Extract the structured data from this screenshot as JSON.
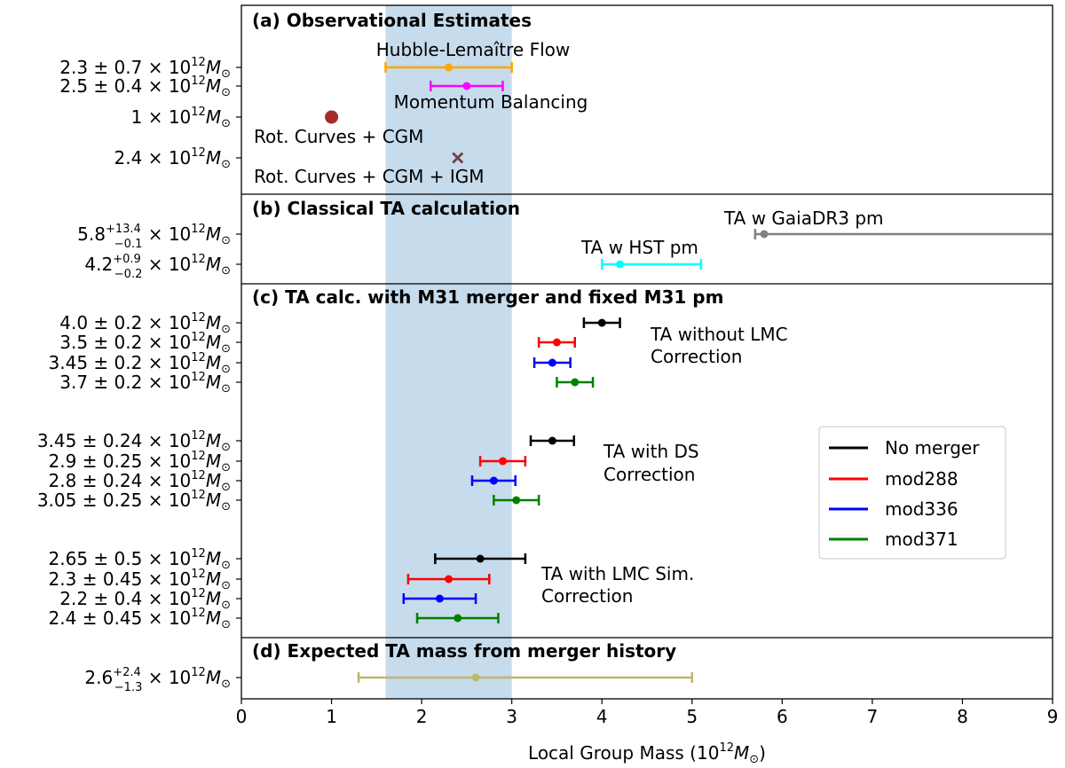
{
  "chart_data": {
    "type": "errorbar",
    "xlabel": "Local Group Mass (10",
    "xlabel_exp": "12",
    "xlabel_tail": "M",
    "xlabel_sub": "⊙",
    "xlabel_close": ")",
    "xlim": [
      0,
      9
    ],
    "xticks": [
      "0",
      "1",
      "2",
      "3",
      "4",
      "5",
      "6",
      "7",
      "8",
      "9"
    ],
    "shaded_band": {
      "x_range": [
        1.6,
        3.0
      ],
      "color": "#c6dbec"
    },
    "unit": {
      "times": "× 10",
      "exp": "12",
      "M": "M",
      "sun": "⊙"
    },
    "panels": [
      {
        "title": "(a) Observational Estimates",
        "rows": [
          {
            "label_value": "2.3 ± 0.7",
            "x": 2.3,
            "lo": 1.6,
            "hi": 3.0,
            "color": "#ffa500",
            "marker": "dot"
          },
          {
            "label_value": "2.5 ± 0.4",
            "x": 2.5,
            "lo": 2.1,
            "hi": 2.9,
            "color": "#ff00ff",
            "marker": "dot"
          },
          {
            "label_value": "1",
            "x": 1.0,
            "color": "#a52a2a",
            "marker": "big-dot"
          },
          {
            "label_value": "2.4",
            "x": 2.4,
            "color": "#7a3d45",
            "marker": "cross"
          }
        ],
        "annotations": [
          "Hubble-Lemaître Flow",
          "Momentum Balancing",
          "Rot. Curves + CGM",
          "Rot. Curves + CGM + IGM"
        ]
      },
      {
        "title": "(b) Classical TA calculation",
        "rows": [
          {
            "label_value": "5.8",
            "label_sup": "+13.4",
            "label_sub": "−0.1",
            "x": 5.8,
            "lo": 5.7,
            "hi": 19.2,
            "color": "#808080",
            "marker": "dot"
          },
          {
            "label_value": "4.2",
            "label_sup": "+0.9",
            "label_sub": "−0.2",
            "x": 4.2,
            "lo": 4.0,
            "hi": 5.1,
            "color": "#00ffff",
            "marker": "dot"
          }
        ],
        "annotations": [
          "TA w GaiaDR3 pm",
          "TA w HST pm"
        ]
      },
      {
        "title": "(c) TA calc. with M31 merger and fixed M31 pm",
        "rows": [
          {
            "label_value": "4.0 ± 0.2",
            "x": 4.0,
            "lo": 3.8,
            "hi": 4.2,
            "color": "#000000",
            "marker": "dot"
          },
          {
            "label_value": "3.5 ± 0.2",
            "x": 3.5,
            "lo": 3.3,
            "hi": 3.7,
            "color": "#ff0000",
            "marker": "dot"
          },
          {
            "label_value": "3.45 ± 0.2",
            "x": 3.45,
            "lo": 3.25,
            "hi": 3.65,
            "color": "#0000ff",
            "marker": "dot"
          },
          {
            "label_value": "3.7 ± 0.2",
            "x": 3.7,
            "lo": 3.5,
            "hi": 3.9,
            "color": "#008000",
            "marker": "dot"
          },
          {
            "label_value": "3.45 ± 0.24",
            "x": 3.45,
            "lo": 3.21,
            "hi": 3.69,
            "color": "#000000",
            "marker": "dot"
          },
          {
            "label_value": "2.9 ± 0.25",
            "x": 2.9,
            "lo": 2.65,
            "hi": 3.15,
            "color": "#ff0000",
            "marker": "dot"
          },
          {
            "label_value": "2.8 ± 0.24",
            "x": 2.8,
            "lo": 2.56,
            "hi": 3.04,
            "color": "#0000ff",
            "marker": "dot"
          },
          {
            "label_value": "3.05 ± 0.25",
            "x": 3.05,
            "lo": 2.8,
            "hi": 3.3,
            "color": "#008000",
            "marker": "dot"
          },
          {
            "label_value": "2.65 ± 0.5",
            "x": 2.65,
            "lo": 2.15,
            "hi": 3.15,
            "color": "#000000",
            "marker": "dot"
          },
          {
            "label_value": "2.3 ± 0.45",
            "x": 2.3,
            "lo": 1.85,
            "hi": 2.75,
            "color": "#ff0000",
            "marker": "dot"
          },
          {
            "label_value": "2.2 ± 0.4",
            "x": 2.2,
            "lo": 1.8,
            "hi": 2.6,
            "color": "#0000ff",
            "marker": "dot"
          },
          {
            "label_value": "2.4 ± 0.45",
            "x": 2.4,
            "lo": 1.95,
            "hi": 2.85,
            "color": "#008000",
            "marker": "dot"
          }
        ],
        "annotations": [
          "TA without LMC",
          "Correction",
          "TA with DS",
          "Correction",
          "TA with LMC Sim.",
          "Correction"
        ]
      },
      {
        "title": "(d) Expected TA mass from merger history",
        "rows": [
          {
            "label_value": "2.6",
            "label_sup": "+2.4",
            "label_sub": "−1.3",
            "x": 2.6,
            "lo": 1.3,
            "hi": 5.0,
            "color": "#bdb76b",
            "marker": "dot"
          }
        ],
        "annotations": []
      }
    ],
    "legend": [
      {
        "label": "No merger",
        "color": "#000000"
      },
      {
        "label": "mod288",
        "color": "#ff0000"
      },
      {
        "label": "mod336",
        "color": "#0000ff"
      },
      {
        "label": "mod371",
        "color": "#008000"
      }
    ],
    "legend_position": "right"
  }
}
